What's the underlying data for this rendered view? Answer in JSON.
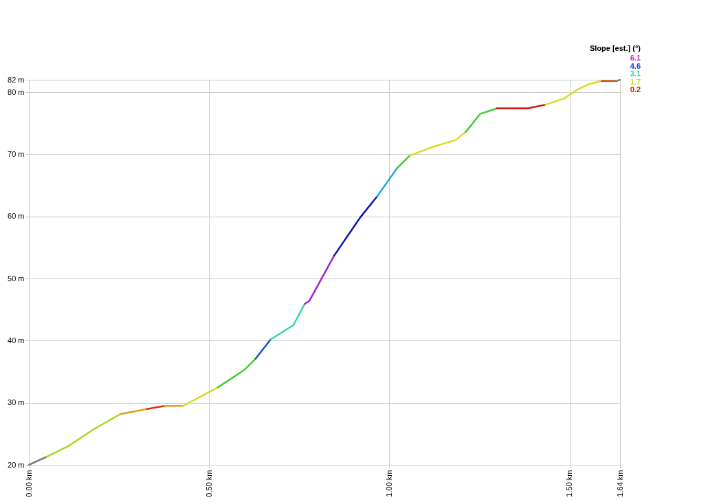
{
  "chart_data": {
    "type": "line",
    "xlim": [
      0,
      1.64
    ],
    "ylim": [
      20,
      82
    ],
    "xticks": [
      {
        "value": 0,
        "label": "0.00 km"
      },
      {
        "value": 0.5,
        "label": "0.50 km"
      },
      {
        "value": 1.0,
        "label": "1.00 km"
      },
      {
        "value": 1.5,
        "label": "1.50 km"
      },
      {
        "value": 1.64,
        "label": "1.64 km"
      }
    ],
    "yticks": [
      {
        "value": 20,
        "label": "20 m"
      },
      {
        "value": 30,
        "label": "30 m"
      },
      {
        "value": 40,
        "label": "40 m"
      },
      {
        "value": 50,
        "label": "50 m"
      },
      {
        "value": 60,
        "label": "60 m"
      },
      {
        "value": 70,
        "label": "70 m"
      },
      {
        "value": 80,
        "label": "80 m"
      },
      {
        "value": 82,
        "label": "82 m"
      }
    ],
    "grid": true,
    "legend_title": "Slope [est.] (°)",
    "annotations": [
      "6.1",
      "4.6",
      "3.1",
      "1.7",
      "0.2"
    ],
    "series": [
      {
        "color": "#808080",
        "x": [
          0,
          0.049
        ],
        "values": [
          20,
          21.3
        ]
      },
      {
        "color": "#a8d820",
        "x": [
          0.049,
          0.109,
          0.179,
          0.255
        ],
        "values": [
          21.3,
          23.0,
          25.7,
          28.2
        ]
      },
      {
        "color": "#e0a010",
        "x": [
          0.255,
          0.328
        ],
        "values": [
          28.2,
          29.0
        ]
      },
      {
        "color": "#d83010",
        "x": [
          0.328,
          0.377
        ],
        "values": [
          29.0,
          29.5
        ]
      },
      {
        "color": "#e0a010",
        "x": [
          0.377,
          0.428
        ],
        "values": [
          29.5,
          29.5
        ]
      },
      {
        "color": "#d8dc20",
        "x": [
          0.428,
          0.525
        ],
        "values": [
          29.5,
          32.5
        ]
      },
      {
        "color": "#40cc30",
        "x": [
          0.525,
          0.598,
          0.629
        ],
        "values": [
          32.5,
          35.3,
          37.1
        ]
      },
      {
        "color": "#1050d0",
        "x": [
          0.629,
          0.671
        ],
        "values": [
          37.1,
          40.2
        ]
      },
      {
        "color": "#30d8b0",
        "x": [
          0.671,
          0.734,
          0.765
        ],
        "values": [
          40.2,
          42.5,
          45.9
        ]
      },
      {
        "color": "#a020d0",
        "x": [
          0.765,
          0.778,
          0.847
        ],
        "values": [
          45.9,
          46.4,
          53.7
        ]
      },
      {
        "color": "#1010b0",
        "x": [
          0.847,
          0.92,
          0.966
        ],
        "values": [
          53.7,
          59.9,
          63.2
        ]
      },
      {
        "color": "#20a8d8",
        "x": [
          0.966,
          1.022
        ],
        "values": [
          63.2,
          67.8
        ]
      },
      {
        "color": "#40cc30",
        "x": [
          1.022,
          1.057
        ],
        "values": [
          67.8,
          69.8
        ]
      },
      {
        "color": "#d8dc20",
        "x": [
          1.057,
          1.121,
          1.184,
          1.212
        ],
        "values": [
          69.8,
          71.2,
          72.3,
          73.6
        ]
      },
      {
        "color": "#40cc30",
        "x": [
          1.212,
          1.252,
          1.299
        ],
        "values": [
          73.6,
          76.5,
          77.4
        ]
      },
      {
        "color": "#d81010",
        "x": [
          1.299,
          1.385,
          1.434
        ],
        "values": [
          77.4,
          77.4,
          78.0
        ]
      },
      {
        "color": "#d8dc20",
        "x": [
          1.434,
          1.485,
          1.521,
          1.554,
          1.589
        ],
        "values": [
          78.0,
          79.0,
          80.4,
          81.3,
          81.8
        ]
      },
      {
        "color": "#d85010",
        "x": [
          1.589,
          1.631
        ],
        "values": [
          81.8,
          81.8
        ]
      },
      {
        "color": "#808080",
        "x": [
          1.631,
          1.64
        ],
        "values": [
          81.8,
          82
        ]
      }
    ]
  }
}
